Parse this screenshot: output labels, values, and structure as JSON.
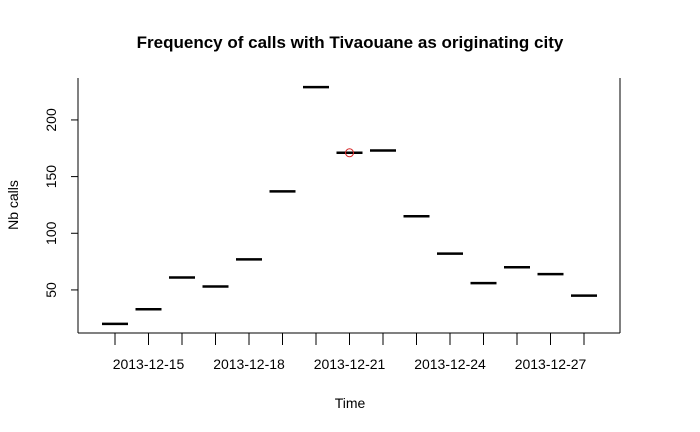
{
  "chart_data": {
    "type": "line",
    "style": "step-levels",
    "title": "Frequency of calls with Tivaouane as originating city",
    "xlabel": "Time",
    "ylabel": "Nb calls",
    "x": [
      "2013-12-14",
      "2013-12-15",
      "2013-12-16",
      "2013-12-17",
      "2013-12-18",
      "2013-12-19",
      "2013-12-20",
      "2013-12-21",
      "2013-12-22",
      "2013-12-23",
      "2013-12-24",
      "2013-12-25",
      "2013-12-26",
      "2013-12-27",
      "2013-12-28"
    ],
    "values": [
      20,
      33,
      61,
      53,
      77,
      137,
      229,
      171,
      173,
      115,
      82,
      56,
      70,
      64,
      45
    ],
    "xtick_labels": [
      "2013-12-15",
      "2013-12-18",
      "2013-12-21",
      "2013-12-24",
      "2013-12-27"
    ],
    "yticks": [
      50,
      100,
      150,
      200
    ],
    "ylim": [
      12,
      237
    ],
    "highlight": {
      "date": "2013-12-21",
      "value": 171,
      "color": "#d62728"
    },
    "frame": "bottom-left-right-top-partial",
    "grid": false
  }
}
